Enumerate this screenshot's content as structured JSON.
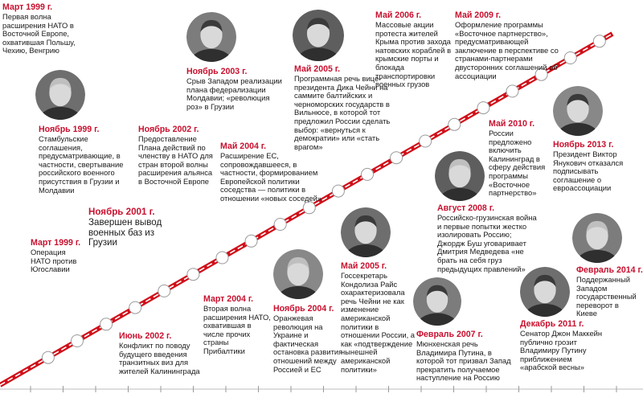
{
  "colors": {
    "accent": "#c8102e",
    "line": "#d0101a",
    "text": "#1a1a1a",
    "dot_stroke": "#9a9a9a",
    "photo_bg": "#8c8c8c"
  },
  "events": [
    {
      "id": "mar1999a",
      "date": "Март 1999 г.",
      "text": "Первая волна расширения НАТО в Восточной Европе, охватившая Польшу, Чехию, Венгрию"
    },
    {
      "id": "mar1999b",
      "date": "Март 1999 г.",
      "text": "Операция НАТО против Югославии"
    },
    {
      "id": "nov1999",
      "date": "Ноябрь 1999 г.",
      "text": "Стамбульские соглашения, предусматривающие, в частности, свертывание российского военного присутствия в Грузии и Молдавии"
    },
    {
      "id": "nov2001",
      "date": "Ноябрь 2001 г.",
      "text": "Завершен вывод военных баз из Грузии"
    },
    {
      "id": "jun2002",
      "date": "Июнь 2002 г.",
      "text": "Конфликт по поводу будущего введения транзитных виз для жителей Калининграда"
    },
    {
      "id": "nov2002",
      "date": "Ноябрь 2002 г.",
      "text": "Предоставление Плана действий по членству в НАТО для стран второй волны расширения альянса в Восточной Европе"
    },
    {
      "id": "nov2003",
      "date": "Ноябрь 2003 г.",
      "text": "Срыв Западом реализации плана федерализации Молдавии; «революция роз» в Грузии"
    },
    {
      "id": "mar2004",
      "date": "Март 2004 г.",
      "text": "Вторая волна расширения НАТО, охватившая в числе прочих страны Прибалтики"
    },
    {
      "id": "may2004",
      "date": "Май 2004 г.",
      "text": "Расширение ЕС, сопровождавшееся, в частности, формированием Европейской политики соседства — политики в отношении «новых соседей»"
    },
    {
      "id": "nov2004",
      "date": "Ноябрь 2004 г.",
      "text": "Оранжевая революция на Украине и фактическая остановка развития отношений между Россией и ЕС"
    },
    {
      "id": "may2005a",
      "date": "Май 2005 г.",
      "text": "Программная речь вице-президента Дика Чейни на саммите балтийских и черноморских государств в Вильнюсе, в которой тот предложил России сделать выбор: «вернуться к демократии» или «стать врагом»"
    },
    {
      "id": "may2005b",
      "date": "Май 2005 г.",
      "text": "Госсекретарь Кондолиза Райс охарактеризовала речь Чейни не как изменение американской политики в отношении России, а как «подтверждение нынешней американской политики»"
    },
    {
      "id": "may2006",
      "date": "Май 2006 г.",
      "text": "Массовые акции протеста жителей Крыма против захода натовских кораблей в крымские порты и блокада транспортировки военных грузов"
    },
    {
      "id": "feb2007",
      "date": "Февраль 2007 г.",
      "text": "Мюнхенская речь Владимира Путина, в которой тот призвал Запад прекратить получаемое наступление на Россию"
    },
    {
      "id": "aug2008",
      "date": "Август 2008 г.",
      "text": "Российско-грузинская война и первые попытки жестко изолировать Россию; Джордж Буш уговаривает Дмитрия Медведева «не брать на себя груз предыдущих правлений»"
    },
    {
      "id": "may2009",
      "date": "Май 2009 г.",
      "text": "Оформление программы «Восточное партнерство», предусматривающей заключение в перспективе со странами-партнерами двусторонних соглашений об ассоциации"
    },
    {
      "id": "may2010",
      "date": "Май 2010 г.",
      "text": "России предложено включить Калининград в сферу действия программы «Восточное партнерство»"
    },
    {
      "id": "dec2011",
      "date": "Декабрь 2011 г.",
      "text": "Сенатор Джон Маккейн публично грозит Владимиру Путину приближением «арабской весны»"
    },
    {
      "id": "nov2013",
      "date": "Ноябрь 2013 г.",
      "text": "Президент Виктор Янукович отказался подписывать соглашение о евроассоциации"
    },
    {
      "id": "feb2014",
      "date": "Февраль 2014 г.",
      "text": "Поддержанный Западом государственный переворот в Киеве"
    }
  ],
  "portraits": [
    {
      "id": "yeltsin",
      "icon": "portrait-icon"
    },
    {
      "id": "saakashvili",
      "icon": "portrait-icon"
    },
    {
      "id": "cheney",
      "icon": "portrait-icon"
    },
    {
      "id": "yushchenko",
      "icon": "portrait-icon"
    },
    {
      "id": "rice",
      "icon": "portrait-icon"
    },
    {
      "id": "putin",
      "icon": "portrait-icon"
    },
    {
      "id": "bush",
      "icon": "portrait-icon"
    },
    {
      "id": "yanukovych",
      "icon": "portrait-icon"
    },
    {
      "id": "mccain",
      "icon": "portrait-icon"
    },
    {
      "id": "biden",
      "icon": "portrait-icon"
    }
  ]
}
